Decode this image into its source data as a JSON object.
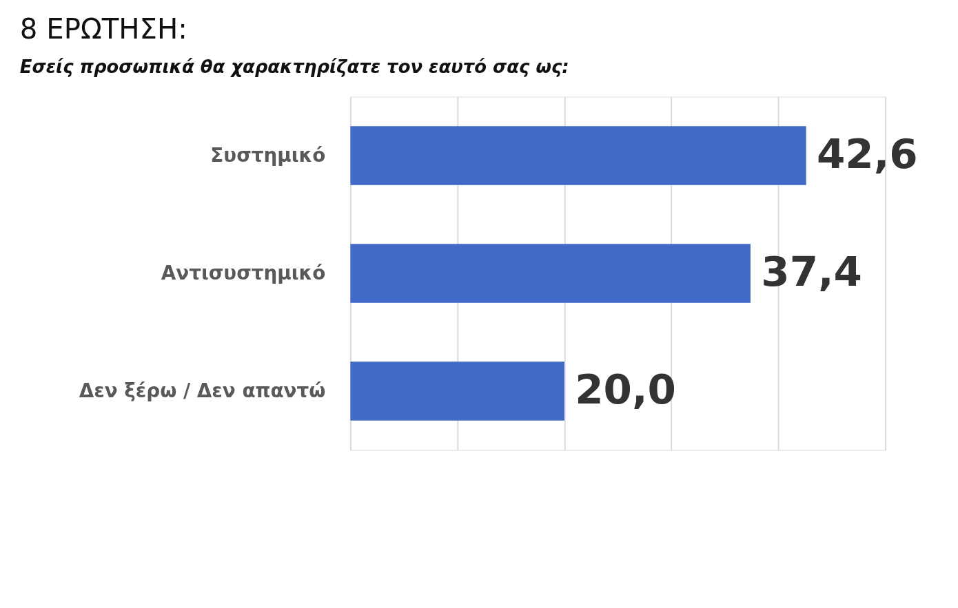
{
  "chart_data": {
    "type": "bar",
    "orientation": "horizontal",
    "title": "8 ΕΡΩΤΗΣΗ:",
    "subtitle": "Εσείς προσωπικά θα χαρακτηρίζατε τον εαυτό σας ως:",
    "categories": [
      "Συστημικό",
      "Αντισυστημικό",
      "Δεν ξέρω / Δεν απαντώ"
    ],
    "values": [
      42.6,
      37.4,
      20.0
    ],
    "value_labels": [
      "42,6",
      "37,4",
      "20,0"
    ],
    "color": "#4169c8",
    "xlim": [
      0,
      50
    ],
    "xticks": [
      {
        "value": 0,
        "label": null
      },
      {
        "value": 10,
        "label": null
      },
      {
        "value": 20,
        "label": null
      },
      {
        "value": 30,
        "label": null
      },
      {
        "value": 40,
        "label": null
      },
      {
        "value": 50,
        "label": null
      }
    ],
    "grid": "x",
    "tick_labels": "y"
  }
}
